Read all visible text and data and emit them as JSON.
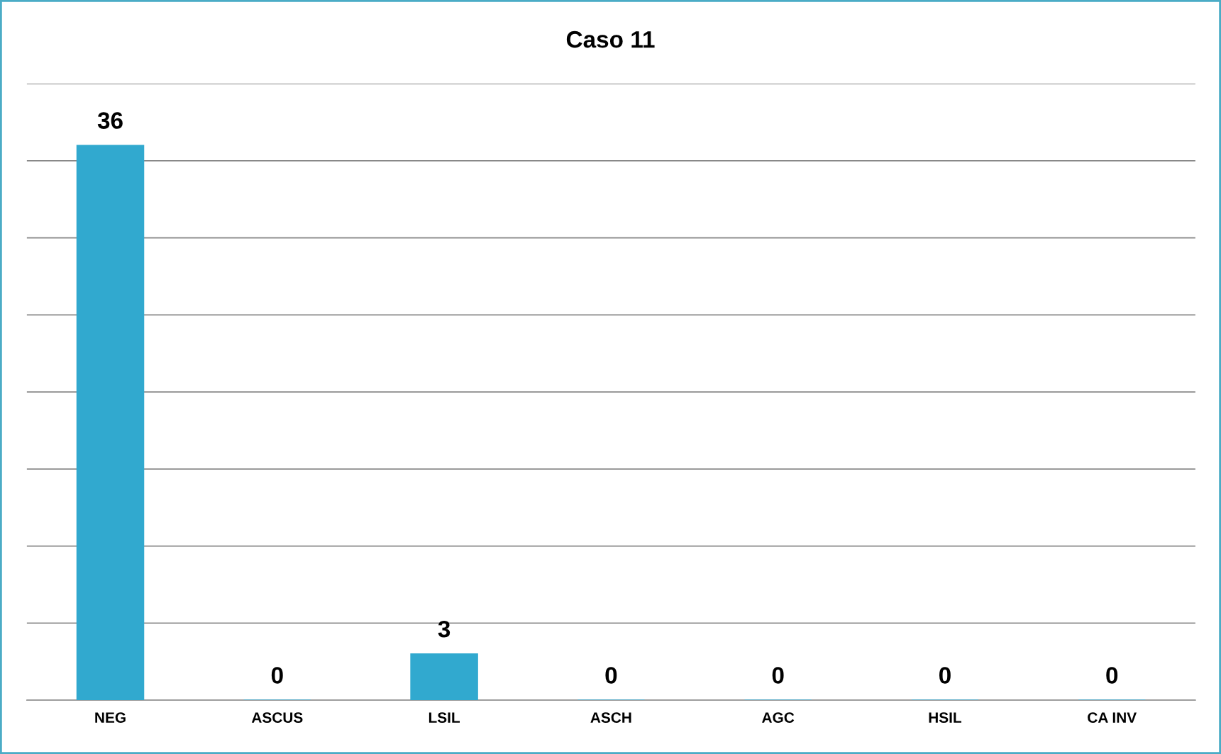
{
  "chart_data": {
    "type": "bar",
    "title": "Caso 11",
    "categories": [
      "NEG",
      "ASCUS",
      "LSIL",
      "ASCH",
      "AGC",
      "HSIL",
      "CA INV"
    ],
    "values": [
      36,
      0,
      3,
      0,
      0,
      0,
      0
    ],
    "color": "#31a9cf",
    "data_labels": true,
    "ylim": [
      0,
      40
    ],
    "yticks": [
      {
        "value": 0,
        "label": null
      },
      {
        "value": 5,
        "label": null
      },
      {
        "value": 10,
        "label": null
      },
      {
        "value": 15,
        "label": null
      },
      {
        "value": 20,
        "label": null
      },
      {
        "value": 25,
        "label": null
      },
      {
        "value": 30,
        "label": null
      },
      {
        "value": 35,
        "label": null
      },
      {
        "value": 40,
        "label": null
      }
    ],
    "grid": "y",
    "tick_labels": "x",
    "legend": false
  }
}
